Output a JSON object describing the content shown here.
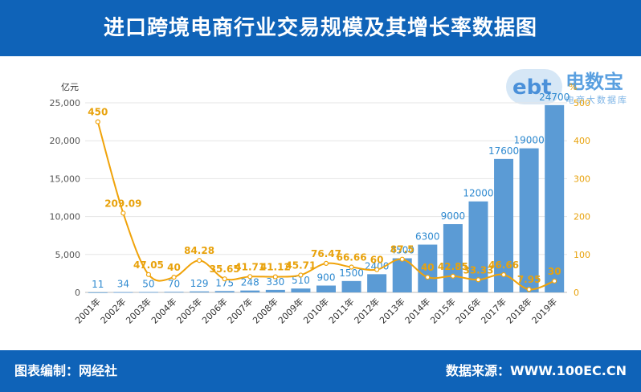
{
  "header": {
    "title": "进口跨境电商行业交易规模及其增长率数据图"
  },
  "footer": {
    "left": "图表编制：网经社",
    "right": "数据来源：WWW.100EC.CN"
  },
  "logo": {
    "mark": "ebt",
    "main": "电数宝",
    "sub": "电商大数据库"
  },
  "colors": {
    "bar": "#5b9bd5",
    "line": "#f0a30a",
    "header": "#0f63b8"
  },
  "chart_data": {
    "type": "bar",
    "categories": [
      "2001年",
      "2002年",
      "2003年",
      "2004年",
      "2005年",
      "2006年",
      "2007年",
      "2008年",
      "2009年",
      "2010年",
      "2011年",
      "2012年",
      "2013年",
      "2014年",
      "2015年",
      "2016年",
      "2017年",
      "2018年",
      "2019年"
    ],
    "series": [
      {
        "type": "bar",
        "axis": "left",
        "values": [
          11,
          34,
          50,
          70,
          129,
          175,
          248,
          330,
          510,
          900,
          1500,
          2400,
          4500,
          6300,
          9000,
          12000,
          17600,
          19000,
          24700
        ],
        "labels": [
          "11",
          "34",
          "50",
          "70",
          "129",
          "175",
          "248",
          "330",
          "510",
          "900",
          "1500",
          "2400",
          "4500",
          "6300",
          "9000",
          "12000",
          "17600",
          "19000",
          "24700"
        ]
      },
      {
        "type": "line",
        "axis": "right",
        "values": [
          450,
          209.09,
          47.05,
          40,
          84.28,
          35.65,
          41.71,
          41.12,
          45.71,
          76.47,
          66.66,
          60,
          87.5,
          40,
          42.85,
          33.33,
          46.66,
          7.95,
          30
        ],
        "labels": [
          "450",
          "209.09",
          "47.05",
          "40",
          "84.28",
          "35.65",
          "41.71",
          "41.12",
          "45.71",
          "76.47",
          "66.66",
          "60",
          "87.5",
          "40",
          "42.85",
          "33.33",
          "46.66",
          "7.95",
          "30"
        ]
      }
    ],
    "y_left": {
      "unit": "亿元",
      "min": 0,
      "max": 25000,
      "ticks": [
        "0",
        "5,000",
        "10,000",
        "15,000",
        "20,000",
        "25,000"
      ]
    },
    "y_right": {
      "unit": "%",
      "min": 0,
      "max": 500,
      "ticks": [
        "0",
        "100",
        "200",
        "300",
        "400",
        "500"
      ]
    },
    "grid": true
  }
}
